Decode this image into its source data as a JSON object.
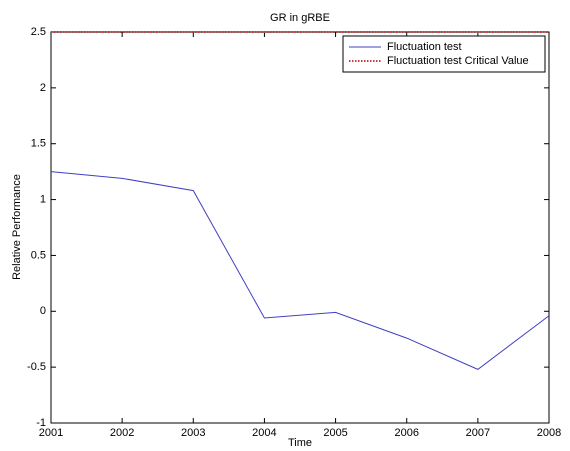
{
  "chart_data": {
    "type": "line",
    "title": "GR in gRBE",
    "xlabel": "Time",
    "ylabel": "Relative Performance",
    "x": [
      2001,
      2002,
      2003,
      2004,
      2005,
      2006,
      2007,
      2008
    ],
    "series": [
      {
        "name": "Fluctuation test",
        "color": "#4040c0",
        "linestyle": "solid",
        "values": [
          1.25,
          1.19,
          1.08,
          -0.06,
          -0.01,
          -0.24,
          -0.52,
          -0.04
        ]
      },
      {
        "name": "Fluctuation test Critical Value",
        "color": "#c04040",
        "linestyle": "dotted",
        "values": [
          2.5,
          2.5,
          2.5,
          2.5,
          2.5,
          2.5,
          2.5,
          2.5
        ]
      }
    ],
    "xlim": [
      2001,
      2008
    ],
    "xticks": [
      2001,
      2002,
      2003,
      2004,
      2005,
      2006,
      2007,
      2008
    ],
    "ylim": [
      -1,
      2.5
    ],
    "yticks": [
      -1,
      -0.5,
      0,
      0.5,
      1,
      1.5,
      2,
      2.5
    ],
    "legend": "upper right",
    "grid": false
  }
}
